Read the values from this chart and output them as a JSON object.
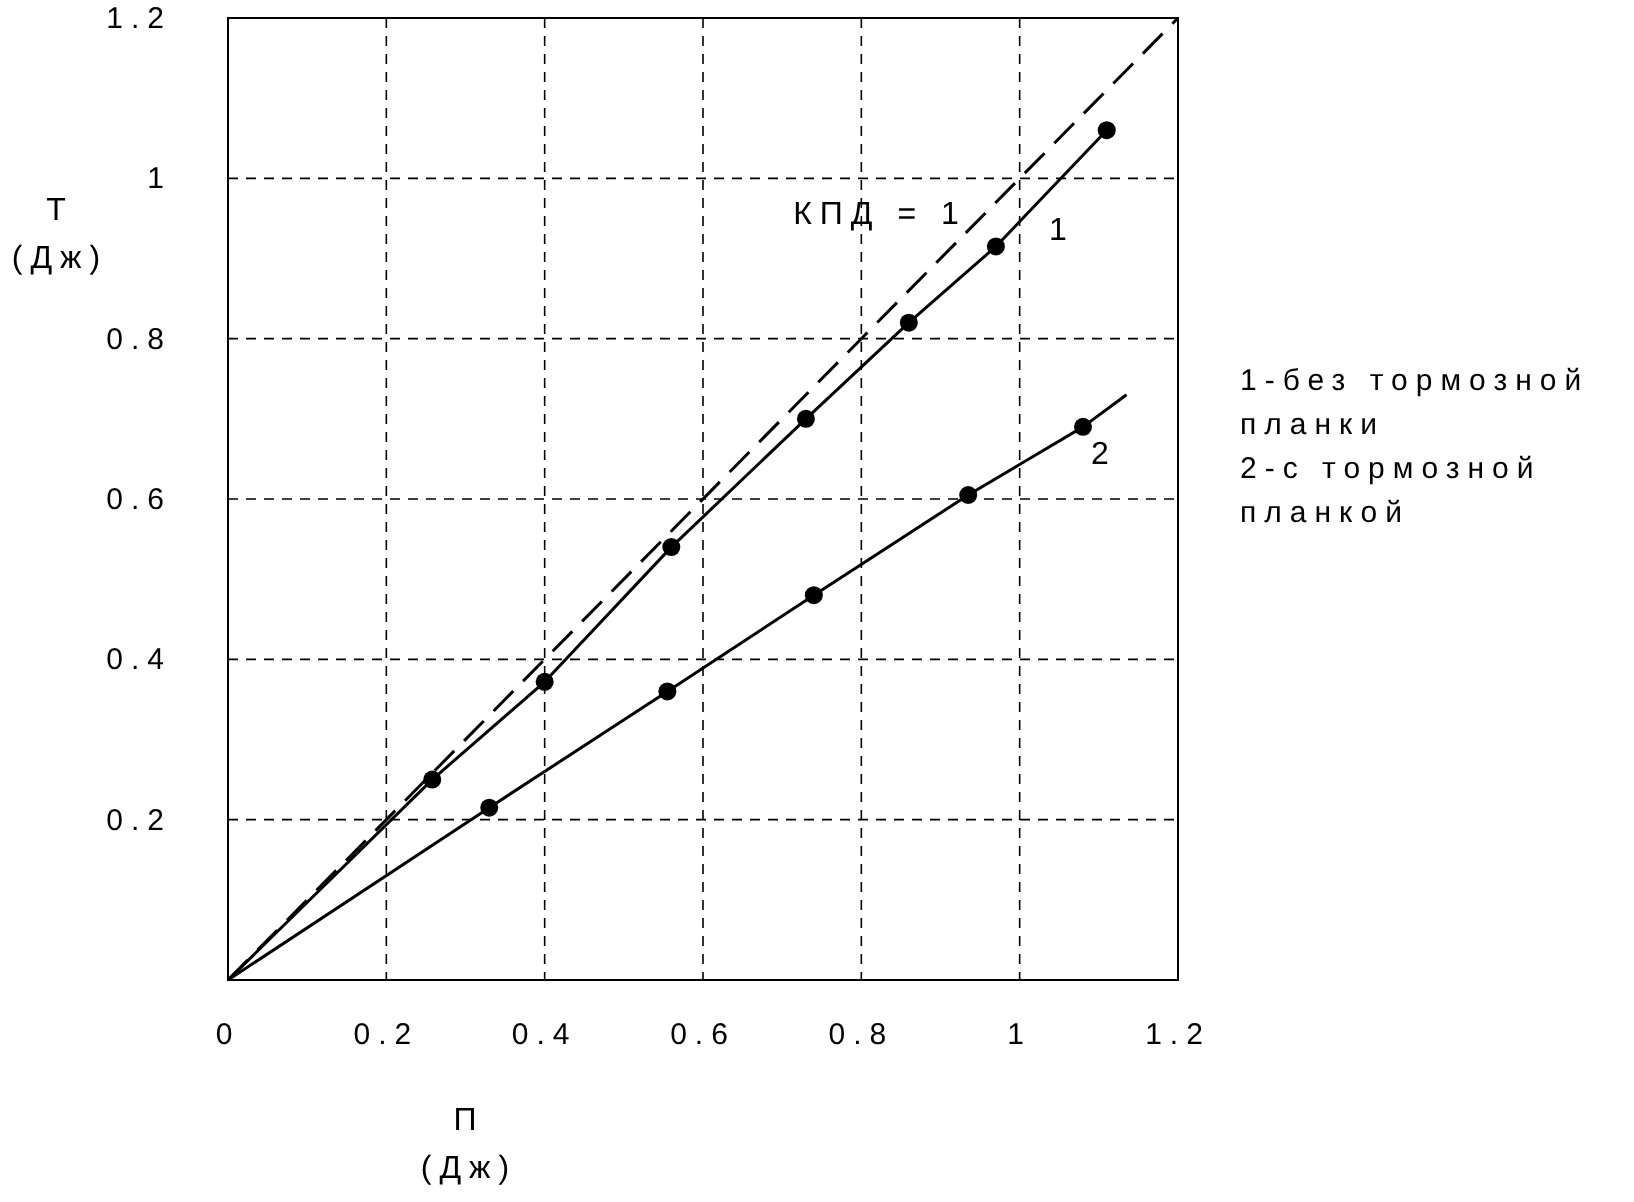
{
  "chart_data": {
    "type": "line",
    "xlabel": "П\n(Дж)",
    "ylabel": "Т\n(Дж)",
    "xlim": [
      0,
      1.2
    ],
    "ylim": [
      0,
      1.2
    ],
    "xticks": [
      0,
      0.2,
      0.4,
      0.6,
      0.8,
      1,
      1.2
    ],
    "yticks": [
      {
        "value": 0,
        "label": null
      },
      0.2,
      0.4,
      0.6,
      0.8,
      1,
      1.2
    ],
    "grid": true,
    "series": [
      {
        "color": "#000000",
        "line_style": "dashed",
        "marker": "none",
        "x": [
          0,
          1.2
        ],
        "values": [
          0,
          1.2
        ]
      },
      {
        "type": "line",
        "color": "#000000",
        "line_style": "solid",
        "marker": "none",
        "x": [
          0,
          0.258,
          0.4,
          0.56,
          0.73,
          0.86,
          0.97,
          1.11
        ],
        "values": [
          0,
          0.25,
          0.372,
          0.54,
          0.7,
          0.82,
          0.915,
          1.06
        ]
      },
      {
        "type": "scatter",
        "color": "#000000",
        "marker": "circle",
        "x": [
          0.258,
          0.4,
          0.56,
          0.73,
          0.86,
          0.97,
          1.11
        ],
        "values": [
          0.25,
          0.372,
          0.54,
          0.7,
          0.82,
          0.915,
          1.06
        ]
      },
      {
        "type": "line",
        "color": "#000000",
        "line_style": "solid",
        "marker": "none",
        "x": [
          0,
          0.33,
          0.555,
          0.74,
          0.935,
          1.08,
          1.135
        ],
        "values": [
          0,
          0.215,
          0.36,
          0.48,
          0.605,
          0.69,
          0.73
        ]
      },
      {
        "type": "scatter",
        "color": "#000000",
        "marker": "circle",
        "x": [
          0.33,
          0.555,
          0.74,
          0.935,
          1.08
        ],
        "values": [
          0.215,
          0.36,
          0.48,
          0.605,
          0.69
        ]
      }
    ],
    "annotations": [
      "КПД = 1",
      "1",
      "2",
      "1-без тормозной\nпланки\n2-с тормозной\nпланкой"
    ]
  }
}
